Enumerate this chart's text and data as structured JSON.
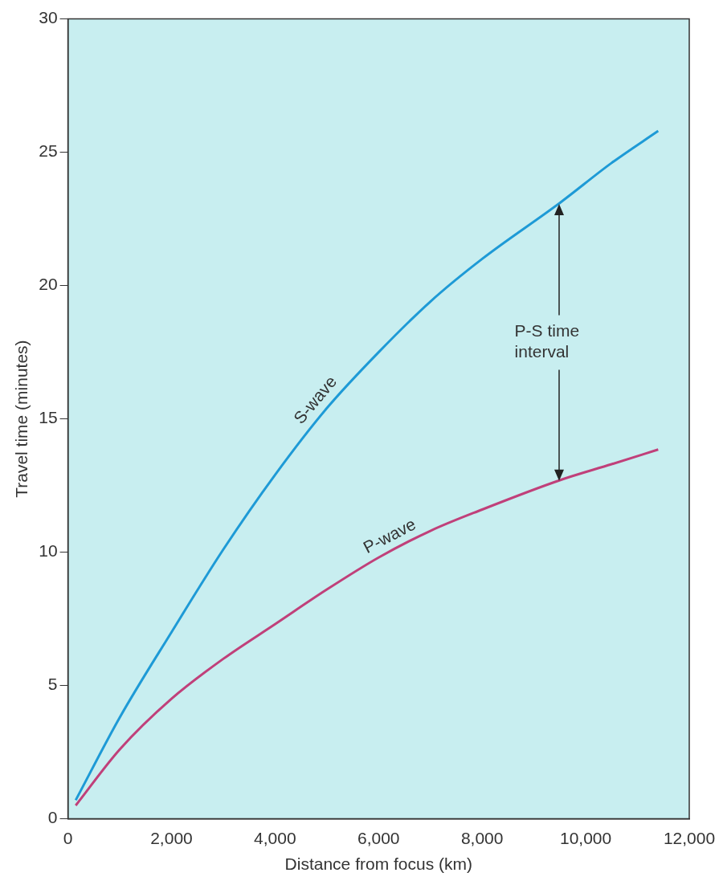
{
  "chart_data": {
    "type": "line",
    "xlabel": "Distance from focus (km)",
    "ylabel": "Travel time (minutes)",
    "xlim": [
      0,
      12000
    ],
    "xticks": [
      {
        "value": 0,
        "label": "0"
      },
      {
        "value": 2000,
        "label": "2,000"
      },
      {
        "value": 4000,
        "label": "4,000"
      },
      {
        "value": 6000,
        "label": "6,000"
      },
      {
        "value": 8000,
        "label": "8,000"
      },
      {
        "value": 10000,
        "label": "10,000"
      },
      {
        "value": 12000,
        "label": "12,000"
      }
    ],
    "ylim": [
      0,
      30
    ],
    "yticks": [
      0,
      5,
      10,
      15,
      20,
      25,
      30
    ],
    "grid": false,
    "legend": false,
    "marker": "none",
    "line_style": "solid",
    "series": [
      {
        "name": "S-wave",
        "color": "#1e9ad6",
        "x": [
          150,
          1000,
          2000,
          3000,
          4000,
          5000,
          6000,
          7000,
          8000,
          9500,
          10500,
          11400
        ],
        "values": [
          0.7,
          3.8,
          7.0,
          10.1,
          12.9,
          15.4,
          17.5,
          19.4,
          21.0,
          23.1,
          24.6,
          25.8
        ]
      },
      {
        "name": "P-wave",
        "color": "#c0407a",
        "x": [
          150,
          1000,
          2000,
          3000,
          4000,
          5000,
          6000,
          7000,
          8000,
          9500,
          10500,
          11400
        ],
        "values": [
          0.5,
          2.6,
          4.5,
          6.0,
          7.3,
          8.6,
          9.8,
          10.8,
          11.6,
          12.7,
          13.3,
          13.85
        ]
      }
    ],
    "annotations": [
      "P-S time interval"
    ]
  }
}
